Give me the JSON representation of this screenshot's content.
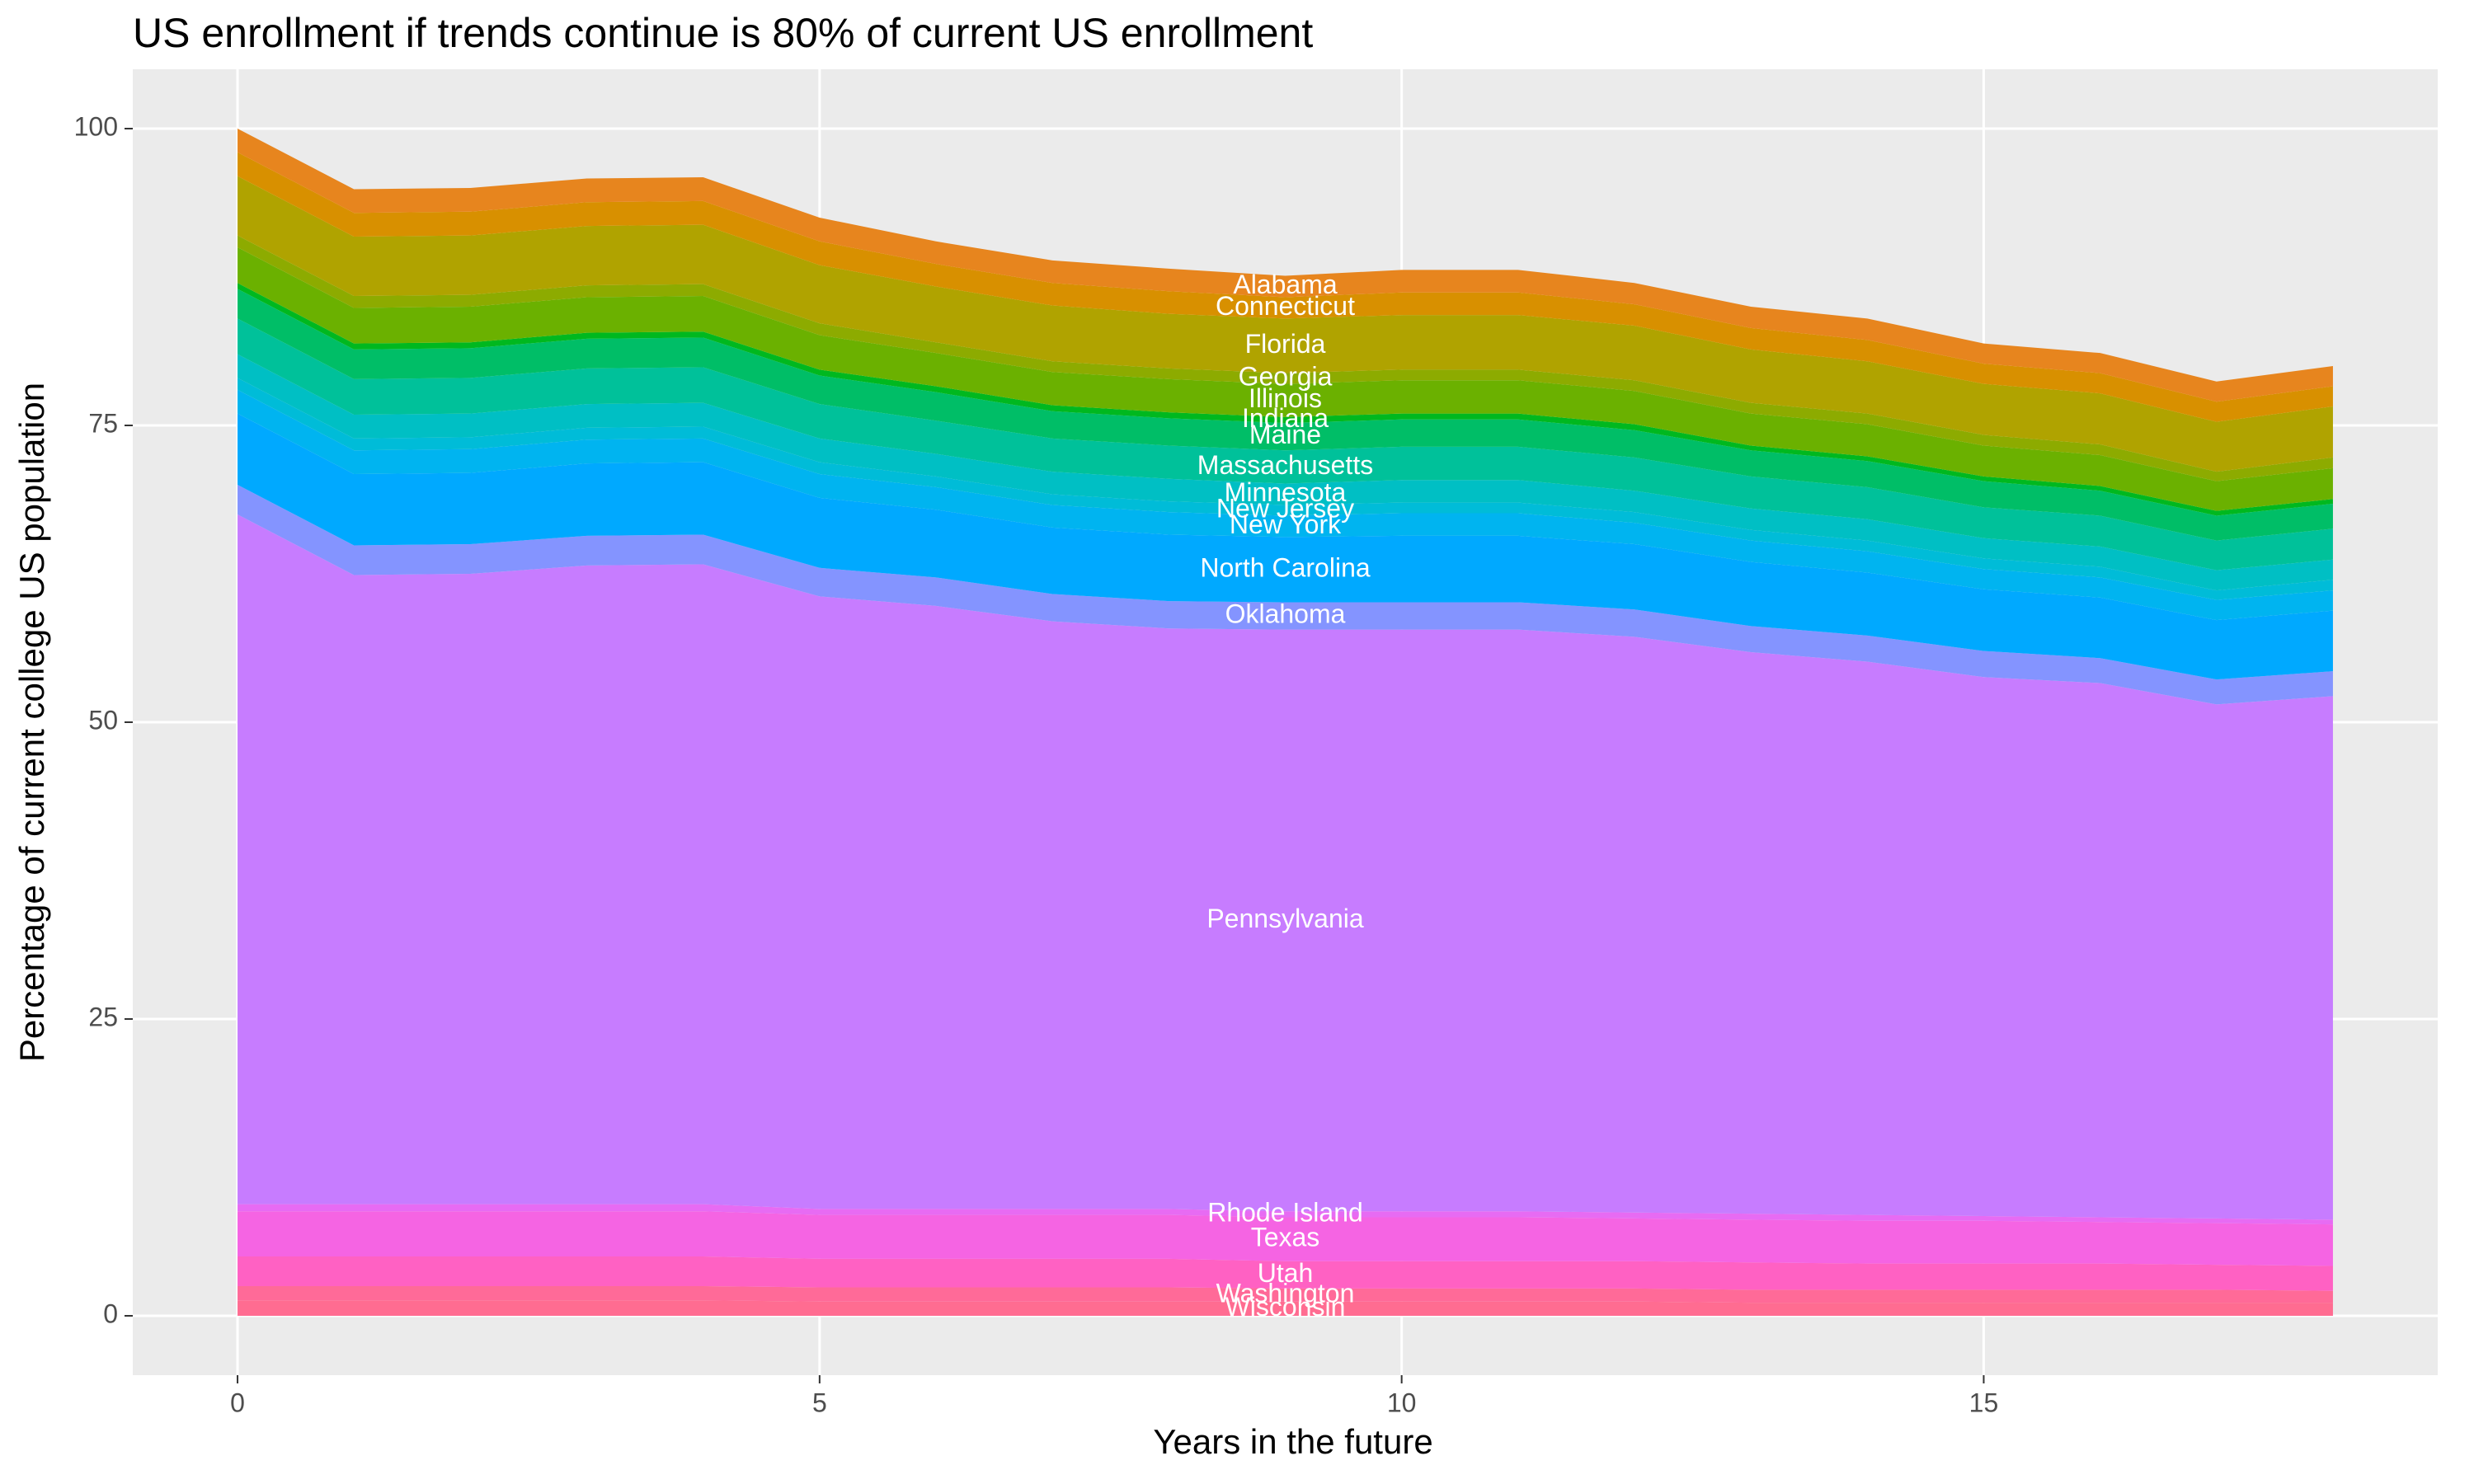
{
  "chart_data": {
    "type": "stacked_area",
    "title": "US enrollment if trends continue is 80% of current US enrollment",
    "x_label": "Years in the future",
    "y_label": "Percentage of current college US population",
    "x": [
      0,
      1,
      2,
      3,
      4,
      5,
      6,
      7,
      8,
      9,
      10,
      11,
      12,
      13,
      14,
      15,
      16,
      17,
      18
    ],
    "xlim": [
      -0.9,
      18.9
    ],
    "xticks": [
      0,
      5,
      10,
      15
    ],
    "ylim": [
      -5,
      105
    ],
    "yticks": [
      0,
      25,
      50,
      75,
      100
    ],
    "grid": true,
    "series": [
      {
        "name": "Wisconsin",
        "color": "#ff6c91",
        "values": [
          1.3,
          1.3,
          1.3,
          1.3,
          1.3,
          1.2,
          1.2,
          1.2,
          1.2,
          1.2,
          1.2,
          1.2,
          1.2,
          1.1,
          1.1,
          1.1,
          1.1,
          1.1,
          1.1
        ]
      },
      {
        "name": "Washington",
        "color": "#ff6a98",
        "values": [
          1.2,
          1.2,
          1.2,
          1.2,
          1.2,
          1.2,
          1.2,
          1.2,
          1.2,
          1.1,
          1.1,
          1.1,
          1.1,
          1.1,
          1.1,
          1.1,
          1.1,
          1.1,
          1.0
        ]
      },
      {
        "name": "Utah",
        "color": "#ff61c3",
        "values": [
          2.5,
          2.5,
          2.5,
          2.5,
          2.5,
          2.4,
          2.4,
          2.4,
          2.4,
          2.3,
          2.3,
          2.3,
          2.3,
          2.3,
          2.2,
          2.2,
          2.2,
          2.1,
          2.1
        ]
      },
      {
        "name": "Texas",
        "color": "#f564e3",
        "values": [
          3.8,
          3.8,
          3.8,
          3.8,
          3.8,
          3.7,
          3.7,
          3.7,
          3.7,
          3.7,
          3.7,
          3.7,
          3.6,
          3.6,
          3.6,
          3.6,
          3.5,
          3.5,
          3.5
        ]
      },
      {
        "name": "Rhode Island",
        "color": "#e76bf3",
        "values": [
          0.6,
          0.6,
          0.6,
          0.6,
          0.6,
          0.5,
          0.5,
          0.5,
          0.5,
          0.5,
          0.5,
          0.5,
          0.5,
          0.5,
          0.5,
          0.4,
          0.4,
          0.4,
          0.4
        ]
      },
      {
        "name": "Pennsylvania",
        "color": "#c77cff",
        "values": [
          58.1,
          53.0,
          53.1,
          53.8,
          53.9,
          51.6,
          50.8,
          49.5,
          48.9,
          49.0,
          49.0,
          49.0,
          48.5,
          47.3,
          46.6,
          45.4,
          45.0,
          43.3,
          44.1
        ]
      },
      {
        "name": "Oklahoma",
        "color": "#8494ff",
        "values": [
          2.5,
          2.5,
          2.5,
          2.5,
          2.5,
          2.4,
          2.4,
          2.3,
          2.3,
          2.3,
          2.3,
          2.3,
          2.3,
          2.2,
          2.2,
          2.2,
          2.1,
          2.1,
          2.1
        ]
      },
      {
        "name": "North Carolina",
        "color": "#00a9ff",
        "values": [
          6.0,
          6.0,
          6.0,
          6.1,
          6.1,
          5.9,
          5.7,
          5.6,
          5.6,
          5.5,
          5.6,
          5.6,
          5.5,
          5.4,
          5.3,
          5.2,
          5.1,
          5.0,
          5.1
        ]
      },
      {
        "name": "New York",
        "color": "#00b4f0",
        "values": [
          2.0,
          2.0,
          2.0,
          2.0,
          2.0,
          2.0,
          1.9,
          1.9,
          1.9,
          1.8,
          1.9,
          1.9,
          1.8,
          1.8,
          1.8,
          1.7,
          1.7,
          1.7,
          1.7
        ]
      },
      {
        "name": "New Jersey",
        "color": "#00bcd8",
        "values": [
          1.0,
          1.0,
          1.0,
          1.0,
          1.0,
          1.0,
          0.9,
          0.9,
          0.9,
          0.9,
          0.9,
          0.9,
          0.9,
          0.9,
          0.9,
          0.9,
          0.9,
          0.8,
          0.9
        ]
      },
      {
        "name": "Minnesota",
        "color": "#00bfc4",
        "values": [
          2.0,
          2.0,
          2.0,
          2.0,
          2.0,
          2.0,
          1.9,
          1.9,
          1.9,
          1.8,
          1.9,
          1.9,
          1.8,
          1.8,
          1.8,
          1.7,
          1.7,
          1.7,
          1.7
        ]
      },
      {
        "name": "Massachusetts",
        "color": "#00c19a",
        "values": [
          3.0,
          3.0,
          3.0,
          3.0,
          3.0,
          2.9,
          2.8,
          2.8,
          2.8,
          2.8,
          2.8,
          2.8,
          2.8,
          2.7,
          2.7,
          2.6,
          2.6,
          2.5,
          2.6
        ]
      },
      {
        "name": "Maine",
        "color": "#00be67",
        "values": [
          2.5,
          2.5,
          2.5,
          2.5,
          2.5,
          2.4,
          2.4,
          2.3,
          2.3,
          2.3,
          2.3,
          2.3,
          2.3,
          2.2,
          2.2,
          2.2,
          2.1,
          2.1,
          2.1
        ]
      },
      {
        "name": "Indiana",
        "color": "#00b81f",
        "values": [
          0.5,
          0.5,
          0.5,
          0.5,
          0.5,
          0.5,
          0.5,
          0.5,
          0.5,
          0.5,
          0.5,
          0.5,
          0.5,
          0.4,
          0.4,
          0.4,
          0.4,
          0.4,
          0.4
        ]
      },
      {
        "name": "Illinois",
        "color": "#6bb100",
        "values": [
          3.0,
          3.0,
          3.0,
          3.0,
          3.0,
          2.9,
          2.8,
          2.8,
          2.8,
          2.8,
          2.8,
          2.8,
          2.8,
          2.7,
          2.7,
          2.6,
          2.6,
          2.5,
          2.6
        ]
      },
      {
        "name": "Georgia",
        "color": "#8dab00",
        "values": [
          1.0,
          1.0,
          1.0,
          1.0,
          1.0,
          1.0,
          0.9,
          0.9,
          0.9,
          0.9,
          0.9,
          0.9,
          0.9,
          0.9,
          0.9,
          0.9,
          0.9,
          0.8,
          0.9
        ]
      },
      {
        "name": "Florida",
        "color": "#b0a300",
        "values": [
          5.0,
          5.0,
          5.0,
          5.0,
          5.0,
          4.9,
          4.7,
          4.7,
          4.6,
          4.6,
          4.6,
          4.6,
          4.6,
          4.5,
          4.4,
          4.3,
          4.3,
          4.2,
          4.3
        ]
      },
      {
        "name": "Connecticut",
        "color": "#d89000",
        "values": [
          2.0,
          2.0,
          2.0,
          2.0,
          2.0,
          2.0,
          1.9,
          1.9,
          1.9,
          1.8,
          1.9,
          1.9,
          1.8,
          1.8,
          1.8,
          1.7,
          1.7,
          1.7,
          1.7
        ]
      },
      {
        "name": "Alabama",
        "color": "#e7851e",
        "values": [
          2.0,
          2.0,
          2.0,
          2.0,
          2.0,
          2.0,
          1.9,
          1.9,
          1.9,
          1.8,
          1.9,
          1.9,
          1.8,
          1.8,
          1.8,
          1.7,
          1.7,
          1.7,
          1.7
        ]
      }
    ]
  }
}
